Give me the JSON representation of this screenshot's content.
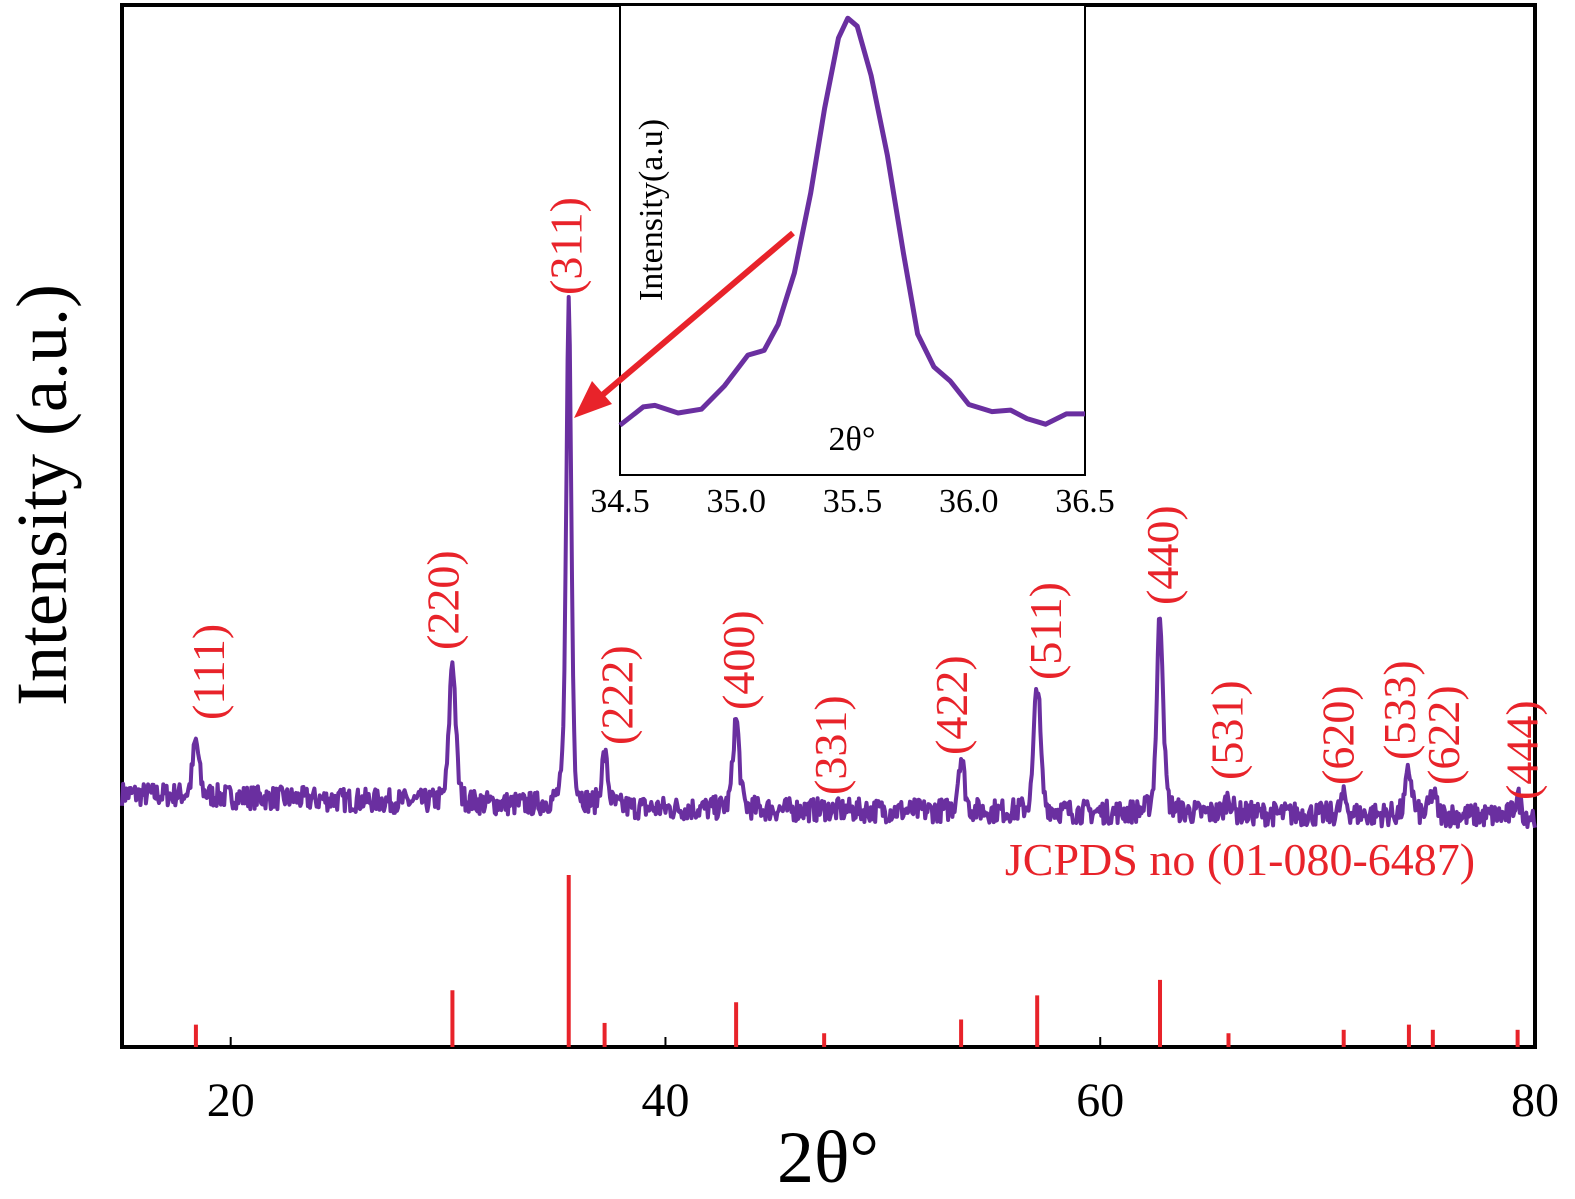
{
  "chart_data": [
    {
      "type": "line",
      "title": "",
      "xlabel": "2θ°",
      "ylabel": "Intensity (a.u.)",
      "xlim": [
        15,
        80
      ],
      "ylim": [
        0,
        140
      ],
      "xticks": [
        "20",
        "40",
        "60",
        "80"
      ],
      "xtick_values": [
        20,
        40,
        60,
        80
      ],
      "grid": false,
      "series_color": "#6a2fa0",
      "annotation_color": "#e8232a",
      "observed_baseline": [
        [
          15,
          34
        ],
        [
          40,
          32
        ],
        [
          60,
          31.5
        ],
        [
          80,
          31
        ]
      ],
      "observed_peaks": [
        {
          "hkl": "(111)",
          "two_theta": 18.4,
          "intensity": 41
        },
        {
          "hkl": "(220)",
          "two_theta": 30.2,
          "intensity": 52
        },
        {
          "hkl": "(311)",
          "two_theta": 35.55,
          "intensity": 100
        },
        {
          "hkl": "(222)",
          "two_theta": 37.2,
          "intensity": 39
        },
        {
          "hkl": "(400)",
          "two_theta": 43.25,
          "intensity": 44
        },
        {
          "hkl": "(331)",
          "two_theta": 47.3,
          "intensity": 32
        },
        {
          "hkl": "(422)",
          "two_theta": 53.6,
          "intensity": 39
        },
        {
          "hkl": "(511)",
          "two_theta": 57.1,
          "intensity": 49
        },
        {
          "hkl": "(440)",
          "two_theta": 62.75,
          "intensity": 58
        },
        {
          "hkl": "(531)",
          "two_theta": 65.9,
          "intensity": 33.5
        },
        {
          "hkl": "(620)",
          "two_theta": 71.2,
          "intensity": 33.5
        },
        {
          "hkl": "(533)",
          "two_theta": 74.2,
          "intensity": 37
        },
        {
          "hkl": "(622)",
          "two_theta": 75.3,
          "intensity": 34
        },
        {
          "hkl": "(444)",
          "two_theta": 79.2,
          "intensity": 33.5
        }
      ],
      "reference": {
        "label": "JCPDS no (01-080-6487)",
        "sticks": [
          {
            "two_theta": 18.4,
            "relative_intensity": 13
          },
          {
            "two_theta": 30.2,
            "relative_intensity": 33
          },
          {
            "two_theta": 35.55,
            "relative_intensity": 100
          },
          {
            "two_theta": 37.2,
            "relative_intensity": 14
          },
          {
            "two_theta": 43.25,
            "relative_intensity": 26
          },
          {
            "two_theta": 47.3,
            "relative_intensity": 8
          },
          {
            "two_theta": 53.6,
            "relative_intensity": 16
          },
          {
            "two_theta": 57.1,
            "relative_intensity": 30
          },
          {
            "two_theta": 62.75,
            "relative_intensity": 39
          },
          {
            "two_theta": 65.9,
            "relative_intensity": 8
          },
          {
            "two_theta": 71.2,
            "relative_intensity": 10
          },
          {
            "two_theta": 74.2,
            "relative_intensity": 13
          },
          {
            "two_theta": 75.3,
            "relative_intensity": 10
          },
          {
            "two_theta": 79.2,
            "relative_intensity": 10
          }
        ]
      }
    },
    {
      "type": "line",
      "title": "",
      "xlabel": "2θ°",
      "ylabel": "Intensity(a.u)",
      "xlim": [
        34.5,
        36.5
      ],
      "ylim": [
        0,
        100
      ],
      "xticks": [
        "34.5",
        "35.0",
        "35.5",
        "36.0",
        "36.5"
      ],
      "xtick_values": [
        34.5,
        35.0,
        35.5,
        36.0,
        36.5
      ],
      "grid": false,
      "series_color": "#6a2fa0",
      "points": [
        [
          34.5,
          10.6
        ],
        [
          34.6,
          14.5
        ],
        [
          34.65,
          14.8
        ],
        [
          34.75,
          13.2
        ],
        [
          34.85,
          14
        ],
        [
          34.95,
          19
        ],
        [
          35.05,
          25.5
        ],
        [
          35.12,
          26.5
        ],
        [
          35.18,
          32
        ],
        [
          35.25,
          43
        ],
        [
          35.32,
          60
        ],
        [
          35.38,
          78
        ],
        [
          35.44,
          93
        ],
        [
          35.48,
          97.2
        ],
        [
          35.52,
          95.5
        ],
        [
          35.58,
          85
        ],
        [
          35.65,
          68
        ],
        [
          35.72,
          47
        ],
        [
          35.78,
          30
        ],
        [
          35.85,
          23
        ],
        [
          35.92,
          20
        ],
        [
          36.0,
          15
        ],
        [
          36.1,
          13.5
        ],
        [
          36.18,
          13.8
        ],
        [
          36.25,
          12
        ],
        [
          36.33,
          10.8
        ],
        [
          36.42,
          13
        ],
        [
          36.5,
          13
        ]
      ]
    }
  ]
}
